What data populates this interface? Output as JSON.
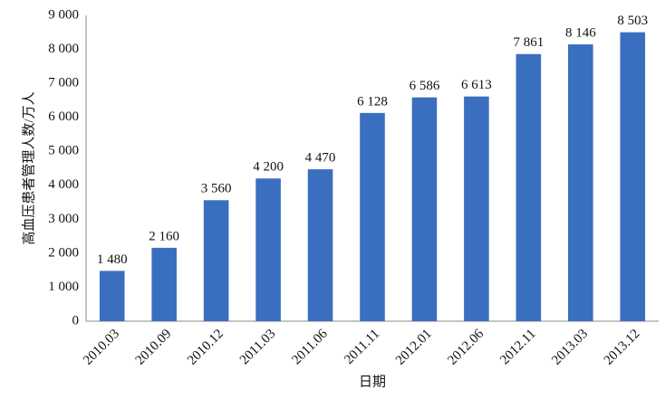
{
  "chart_data": {
    "type": "bar",
    "x_label": "日期",
    "y_label": "高血压患者管理人数/万人",
    "categories": [
      "2010.03",
      "2010.09",
      "2010.12",
      "2011.03",
      "2011.06",
      "2011.11",
      "2012.01",
      "2012.06",
      "2012.11",
      "2013.03",
      "2013.12"
    ],
    "values": [
      1480,
      2160,
      3560,
      4200,
      4470,
      6128,
      6586,
      6613,
      7861,
      8146,
      8503
    ],
    "value_labels": [
      "1 480",
      "2 160",
      "3 560",
      "4 200",
      "4 470",
      "6 128",
      "6 586",
      "6 613",
      "7 861",
      "8 146",
      "8 503"
    ],
    "color": "#3a6ebf",
    "ylim": [
      0,
      9000
    ],
    "yticks": [
      0,
      {
        "value": 1000,
        "label": "1 000"
      },
      {
        "value": 2000,
        "label": "2 000"
      },
      {
        "value": 3000,
        "label": "3 000"
      },
      {
        "value": 4000,
        "label": "4 000"
      },
      {
        "value": 5000,
        "label": "5 000"
      },
      {
        "value": 6000,
        "label": "6 000"
      },
      {
        "value": 7000,
        "label": "7 000"
      },
      {
        "value": 8000,
        "label": "8 000"
      },
      {
        "value": 9000,
        "label": "9 000"
      }
    ],
    "grid": false
  }
}
